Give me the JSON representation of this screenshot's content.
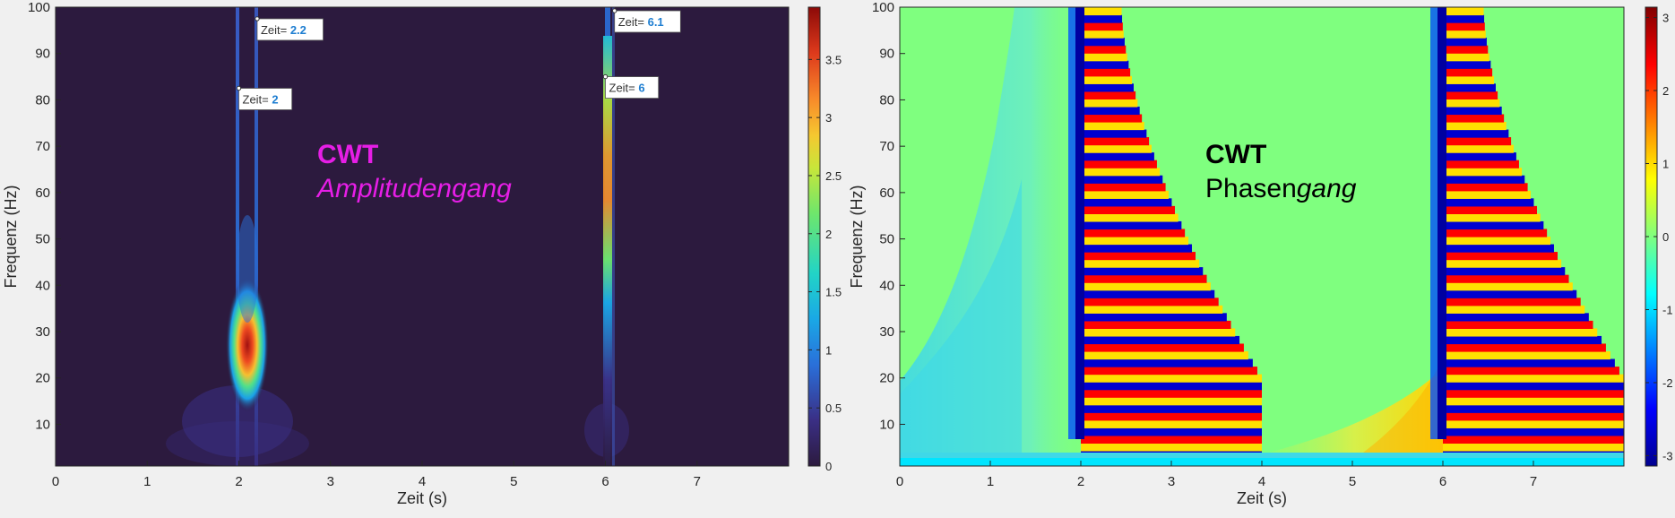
{
  "chart_data": [
    {
      "type": "heatmap",
      "xlabel": "Zeit (s)",
      "ylabel": "Frequenz (Hz)",
      "xlim": [
        0,
        8
      ],
      "ylim": [
        1,
        100
      ],
      "xticks": [
        "0",
        "1",
        "2",
        "3",
        "4",
        "5",
        "6",
        "7"
      ],
      "yticks": [
        "10",
        "20",
        "30",
        "40",
        "50",
        "60",
        "70",
        "80",
        "90",
        "100"
      ],
      "colormap": "parula",
      "colorbar": {
        "min": 0,
        "max": 3.95,
        "ticks": [
          "0",
          "0.5",
          "1",
          "1.5",
          "2",
          "2.5",
          "3",
          "3.5"
        ]
      },
      "annotation": {
        "title": "CWT",
        "subtitle": "Amplitudengang",
        "color": "#e61ee6"
      },
      "datatips": [
        {
          "label": "Zeit=",
          "value": "2.2",
          "x": 2.2,
          "y": 97.5
        },
        {
          "label": "Zeit=",
          "value": "2",
          "x": 2.0,
          "y": 82.5
        },
        {
          "label": "Zeit=",
          "value": "6.1",
          "x": 6.1,
          "y": 100
        },
        {
          "label": "Zeit=",
          "value": "6",
          "x": 6.0,
          "y": 85
        }
      ],
      "ridges": [
        {
          "t": 2.0,
          "f_range": [
            1,
            100
          ],
          "peak_f": 27,
          "peak_amplitude": 3.9
        },
        {
          "t": 2.2,
          "f_range": [
            1,
            100
          ],
          "peak_amplitude": 0.8
        },
        {
          "t": 6.1,
          "f_range": [
            1,
            100
          ],
          "peak_f": 65,
          "peak_amplitude": 3.0
        }
      ]
    },
    {
      "type": "heatmap",
      "xlabel": "Zeit (s)",
      "ylabel": "Frequenz (Hz)",
      "xlim": [
        0,
        8
      ],
      "ylim": [
        1,
        100
      ],
      "xticks": [
        "0",
        "1",
        "2",
        "3",
        "4",
        "5",
        "6",
        "7"
      ],
      "yticks": [
        "10",
        "20",
        "30",
        "40",
        "50",
        "60",
        "70",
        "80",
        "90",
        "100"
      ],
      "colormap": "jet",
      "colorbar": {
        "min": -3.1416,
        "max": 3.1416,
        "ticks": [
          "-3",
          "-2",
          "-1",
          "0",
          "1",
          "2",
          "3"
        ]
      },
      "annotation": {
        "title": "CWT",
        "subtitle_plain": "Phasen",
        "subtitle_italic": "gang",
        "color": "#000000"
      },
      "background_phase": 0.55,
      "regions": [
        {
          "t_start": 2.0,
          "t_end_at_f100": 2.45,
          "t_end_at_f20": 4.0,
          "t_end_at_f1": 4.0
        },
        {
          "t_start": 6.0,
          "t_end_at_f100": 6.45,
          "t_end_at_f20": 8.0,
          "t_end_at_f1": 8.0
        }
      ]
    }
  ]
}
